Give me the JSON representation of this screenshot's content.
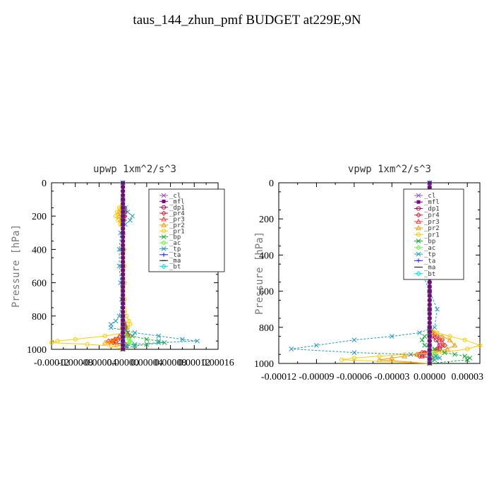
{
  "page": {
    "title": "taus_144_zhun_pmf  BUDGET at229E,9N"
  },
  "chart_data": [
    {
      "type": "line",
      "title": "upwp  1xm^2/s^3",
      "ylabel": "Pressure [hPa]",
      "xlim": [
        -0.00012,
        0.00016
      ],
      "ylim": [
        1000,
        0
      ],
      "xticks": [
        "-0.00012",
        "-0.00008",
        "-0.00004",
        "0.00000",
        "0.00004",
        "0.00008",
        "0.00012",
        "0.00016"
      ],
      "yticks": [
        "0",
        "200",
        "400",
        "600",
        "800",
        "1000"
      ],
      "legend_position": "top-right",
      "p": [
        0,
        100,
        150,
        175,
        200,
        225,
        250,
        300,
        400,
        500,
        600,
        700,
        800,
        830,
        850,
        870,
        900,
        920,
        940,
        950,
        960,
        970,
        980,
        1000
      ],
      "series": [
        {
          "name": "_cl",
          "color": "#9955cc",
          "marker": "x",
          "values": [
            0,
            0,
            0,
            0,
            0,
            0,
            0,
            0,
            0,
            0,
            0,
            0,
            0,
            0,
            0,
            0,
            0,
            0,
            0,
            0,
            0,
            0,
            0,
            0
          ]
        },
        {
          "name": "_mfl",
          "color": "#800080",
          "marker": "square",
          "values": [
            0,
            0,
            0,
            0,
            0,
            0,
            0,
            0,
            0,
            0,
            0,
            0,
            0,
            0,
            0,
            0,
            0,
            0,
            0,
            0,
            0,
            0,
            0,
            0
          ]
        },
        {
          "name": "_dp1",
          "color": "#b0004c",
          "marker": "circle",
          "values": [
            0,
            0,
            2e-06,
            3e-06,
            2e-06,
            0,
            0,
            0,
            0,
            0,
            0,
            0,
            0,
            0,
            2e-06,
            4e-06,
            6e-06,
            8e-06,
            -8e-06,
            -1.8e-05,
            -1.2e-05,
            4e-06,
            6e-06,
            0
          ]
        },
        {
          "name": "_pr4",
          "color": "#dd2233",
          "marker": "diamond",
          "values": [
            0,
            0,
            3e-06,
            4e-06,
            3e-06,
            2e-06,
            0,
            0,
            0,
            0,
            0,
            0,
            0,
            0,
            2e-06,
            4e-06,
            6e-06,
            1.2e-05,
            -1.2e-05,
            -2.4e-05,
            -1.6e-05,
            8e-06,
            4e-06,
            0
          ]
        },
        {
          "name": "_pr3",
          "color": "#ff3b3b",
          "marker": "triangle",
          "values": [
            0,
            0,
            2e-06,
            3e-06,
            2e-06,
            0,
            0,
            0,
            0,
            0,
            0,
            0,
            0,
            2e-06,
            3e-06,
            6e-06,
            6e-06,
            -6e-06,
            -1.4e-05,
            -1.8e-05,
            -2e-05,
            4e-06,
            0,
            0
          ]
        },
        {
          "name": "_pr2",
          "color": "#ff9900",
          "marker": "triangle",
          "values": [
            0,
            0,
            -4e-06,
            -6e-06,
            -6e-06,
            -4e-06,
            -2e-06,
            0,
            0,
            0,
            0,
            0,
            0,
            0,
            0,
            -2e-06,
            2e-06,
            8e-06,
            -1.2e-05,
            -2e-05,
            -3e-05,
            -1e-05,
            0,
            0
          ]
        },
        {
          "name": "_pr1",
          "color": "#ffcc00",
          "marker": "circle",
          "values": [
            0,
            0,
            -6e-06,
            -1e-05,
            -1.2e-05,
            -8e-06,
            -4e-06,
            0,
            2e-06,
            3e-06,
            3e-06,
            3e-06,
            6e-06,
            1e-05,
            1.2e-05,
            8e-06,
            4e-06,
            -3e-05,
            -8e-05,
            -0.00011,
            -0.00012,
            -6e-05,
            -2e-05,
            0
          ]
        },
        {
          "name": "_bp",
          "color": "#11aa33",
          "marker": "x",
          "values": [
            0,
            0,
            0,
            0,
            0,
            0,
            0,
            0,
            0,
            0,
            0,
            0,
            0,
            0,
            0,
            4e-06,
            8e-06,
            1.6e-05,
            4e-05,
            6e-05,
            7e-05,
            4e-05,
            2e-05,
            0
          ]
        },
        {
          "name": "_ac",
          "color": "#66ff44",
          "marker": "diamond",
          "values": [
            0,
            0,
            0,
            0,
            0,
            0,
            0,
            0,
            0,
            0,
            0,
            0,
            0,
            0,
            0,
            0,
            3e-06,
            4e-06,
            1e-05,
            1.2e-05,
            1.4e-05,
            8e-06,
            3e-06,
            0
          ]
        },
        {
          "name": "_tp",
          "color": "#2299cc",
          "marker": "x",
          "values": [
            0,
            0,
            4e-06,
            8e-06,
            1.6e-05,
            1.2e-05,
            4e-06,
            -4e-06,
            -6e-06,
            -6e-06,
            -4e-06,
            -2e-06,
            -6e-06,
            -1.2e-05,
            -2e-05,
            -2e-05,
            2e-05,
            6e-05,
            0.0001,
            0.000125,
            6e-05,
            2e-05,
            6e-06,
            0
          ]
        },
        {
          "name": "_ta",
          "color": "#2222dd",
          "marker": "plus",
          "values": [
            0,
            0,
            0,
            0,
            0,
            0,
            0,
            0,
            0,
            0,
            0,
            0,
            0,
            0,
            0,
            0,
            0,
            0,
            0,
            0,
            0,
            0,
            0,
            0
          ]
        },
        {
          "name": "_ma",
          "color": "#111111",
          "marker": "dash",
          "values": [
            0,
            0,
            0,
            0,
            0,
            0,
            0,
            0,
            0,
            0,
            0,
            0,
            0,
            0,
            0,
            0,
            0,
            0,
            0,
            0,
            0,
            0,
            0,
            0
          ]
        },
        {
          "name": "_bt",
          "color": "#00e5ee",
          "marker": "diamond",
          "values": [
            0,
            0,
            0,
            0,
            0,
            0,
            0,
            0,
            0,
            0,
            0,
            0,
            0,
            0,
            0,
            0,
            0,
            0,
            0,
            0,
            0,
            0,
            0,
            0
          ]
        }
      ]
    },
    {
      "type": "line",
      "title": "vpwp  1xm^2/s^3",
      "ylabel": "Pressure [hPa]",
      "xlim": [
        -0.00012,
        4e-05
      ],
      "ylim": [
        1000,
        0
      ],
      "xticks": [
        "-0.00012",
        "-0.00009",
        "-0.00006",
        "-0.00003",
        "0.00000",
        "0.00003"
      ],
      "yticks": [
        "0",
        "200",
        "400",
        "600",
        "800",
        "1000"
      ],
      "legend_position": "top-right",
      "p": [
        0,
        100,
        150,
        175,
        200,
        225,
        250,
        300,
        400,
        500,
        600,
        700,
        800,
        830,
        850,
        870,
        900,
        920,
        940,
        950,
        960,
        970,
        980,
        1000
      ],
      "series": [
        {
          "name": "_cl",
          "color": "#9955cc",
          "marker": "x",
          "values": [
            0,
            0,
            0,
            0,
            0,
            0,
            0,
            0,
            0,
            0,
            0,
            0,
            0,
            0,
            0,
            0,
            0,
            0,
            0,
            0,
            0,
            0,
            0,
            0
          ]
        },
        {
          "name": "_mfl",
          "color": "#800080",
          "marker": "square",
          "values": [
            0,
            0,
            0,
            0,
            0,
            0,
            0,
            0,
            0,
            0,
            0,
            0,
            0,
            0,
            0,
            0,
            0,
            0,
            0,
            0,
            0,
            0,
            0,
            0
          ]
        },
        {
          "name": "_dp1",
          "color": "#b0004c",
          "marker": "circle",
          "values": [
            0,
            0,
            0,
            2e-06,
            2e-06,
            0,
            0,
            0,
            0,
            0,
            0,
            0,
            0,
            0,
            2e-06,
            5e-06,
            8e-06,
            6e-06,
            -4e-06,
            -8e-06,
            -6e-06,
            2e-06,
            2e-06,
            0
          ]
        },
        {
          "name": "_pr4",
          "color": "#dd2233",
          "marker": "diamond",
          "values": [
            0,
            0,
            0,
            3e-06,
            4e-06,
            2e-06,
            0,
            0,
            0,
            0,
            0,
            0,
            0,
            2e-06,
            6e-06,
            1e-05,
            1.2e-05,
            8e-06,
            -6e-06,
            -1e-05,
            -8e-06,
            2e-06,
            2e-06,
            0
          ]
        },
        {
          "name": "_pr3",
          "color": "#ff3b3b",
          "marker": "triangle",
          "values": [
            0,
            0,
            0,
            2e-06,
            2e-06,
            0,
            0,
            0,
            0,
            0,
            0,
            0,
            0,
            0,
            4e-06,
            8e-06,
            1e-05,
            6e-06,
            -4e-06,
            -8e-06,
            -6e-06,
            0,
            0,
            0
          ]
        },
        {
          "name": "_pr2",
          "color": "#ff9900",
          "marker": "triangle",
          "values": [
            0,
            0,
            -2e-06,
            -4e-06,
            -4e-06,
            -2e-06,
            0,
            0,
            0,
            0,
            0,
            0,
            0,
            4e-06,
            1e-05,
            1.6e-05,
            2e-05,
            1.4e-05,
            4e-06,
            -1e-05,
            -2e-05,
            -3e-05,
            -4e-05,
            0
          ]
        },
        {
          "name": "_pr1",
          "color": "#ffcc00",
          "marker": "circle",
          "values": [
            0,
            0,
            -4e-06,
            -6e-06,
            -6e-06,
            -4e-06,
            -2e-06,
            0,
            0,
            0,
            0,
            0,
            0,
            6e-06,
            1.6e-05,
            2.8e-05,
            4e-05,
            3e-05,
            1e-05,
            -2e-05,
            -4e-05,
            -6e-05,
            -7e-05,
            0
          ]
        },
        {
          "name": "_bp",
          "color": "#11aa33",
          "marker": "x",
          "values": [
            0,
            0,
            0,
            1e-06,
            0,
            -2e-06,
            0,
            0,
            0,
            0,
            0,
            0,
            0,
            0,
            -4e-06,
            -6e-06,
            -4e-06,
            4e-06,
            1.2e-05,
            2e-05,
            2.8e-05,
            3.2e-05,
            3e-05,
            0
          ]
        },
        {
          "name": "_ac",
          "color": "#66ff44",
          "marker": "diamond",
          "values": [
            0,
            0,
            0,
            0,
            0,
            0,
            0,
            0,
            0,
            0,
            0,
            0,
            0,
            0,
            0,
            0,
            0,
            0,
            2e-06,
            4e-06,
            6e-06,
            4e-06,
            2e-06,
            0
          ]
        },
        {
          "name": "_tp",
          "color": "#2299cc",
          "marker": "x",
          "values": [
            0,
            0,
            4e-06,
            6e-06,
            6e-06,
            4e-06,
            2e-06,
            0,
            -4e-06,
            -6e-06,
            0,
            6e-06,
            4e-06,
            -8e-06,
            -3e-05,
            -6e-05,
            -9e-05,
            -0.00011,
            -6e-05,
            -1.5e-05,
            5e-06,
            8e-06,
            4e-06,
            0
          ]
        },
        {
          "name": "_ta",
          "color": "#2222dd",
          "marker": "plus",
          "values": [
            0,
            0,
            0,
            0,
            0,
            0,
            0,
            0,
            0,
            0,
            0,
            0,
            0,
            0,
            0,
            0,
            0,
            0,
            0,
            0,
            0,
            0,
            0,
            0
          ]
        },
        {
          "name": "_ma",
          "color": "#111111",
          "marker": "dash",
          "values": [
            0,
            0,
            0,
            0,
            0,
            0,
            0,
            0,
            0,
            0,
            0,
            0,
            0,
            0,
            0,
            0,
            0,
            0,
            0,
            0,
            0,
            0,
            0,
            0
          ]
        },
        {
          "name": "_bt",
          "color": "#00e5ee",
          "marker": "diamond",
          "values": [
            0,
            0,
            0,
            0,
            0,
            0,
            0,
            0,
            0,
            0,
            0,
            0,
            0,
            0,
            0,
            0,
            0,
            0,
            0,
            0,
            0,
            0,
            0,
            0
          ]
        }
      ]
    }
  ]
}
